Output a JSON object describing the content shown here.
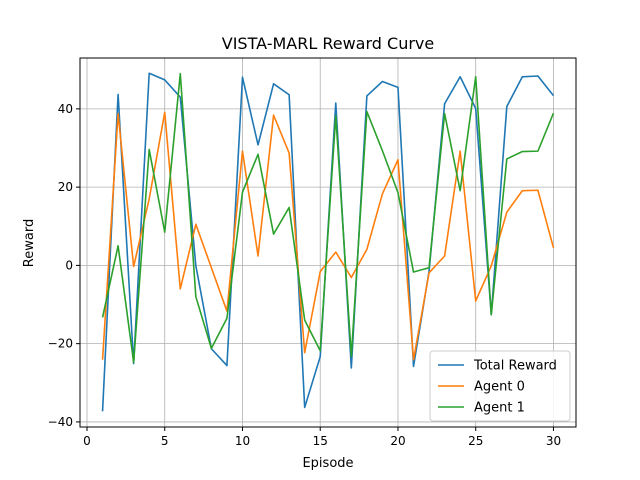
{
  "chart_data": {
    "type": "line",
    "title": "VISTA-MARL Reward Curve",
    "xlabel": "Episode",
    "ylabel": "Reward",
    "xlim": [
      -0.45,
      31.45
    ],
    "ylim": [
      -41.3,
      53.0
    ],
    "xticks": [
      0,
      5,
      10,
      15,
      20,
      25,
      30
    ],
    "yticks": [
      -40,
      -20,
      0,
      20,
      40
    ],
    "grid": true,
    "legend_position": "bottom-right",
    "x": [
      1,
      2,
      3,
      4,
      5,
      6,
      7,
      8,
      9,
      10,
      11,
      12,
      13,
      14,
      15,
      16,
      17,
      18,
      19,
      20,
      21,
      22,
      23,
      24,
      25,
      26,
      27,
      28,
      29,
      30
    ],
    "series": [
      {
        "name": "Total Reward",
        "color": "#1f77b4",
        "values": [
          -37.3,
          43.7,
          -25.1,
          49.1,
          47.4,
          43.0,
          -0.1,
          -21.3,
          -25.6,
          48.1,
          30.8,
          46.4,
          43.6,
          -36.3,
          -23.3,
          41.5,
          -26.2,
          43.3,
          47.0,
          45.5,
          -25.8,
          -1.5,
          41.3,
          48.2,
          40.1,
          -12.6,
          40.6,
          48.2,
          48.4,
          43.4
        ]
      },
      {
        "name": "Agent 0",
        "color": "#ff7f0e",
        "values": [
          -24.1,
          38.8,
          -0.3,
          17.0,
          39.1,
          -6.0,
          10.5,
          -0.6,
          -11.7,
          29.2,
          2.4,
          38.4,
          28.7,
          -22.3,
          -1.6,
          3.4,
          -3.1,
          4.1,
          18.3,
          27.0,
          -24.1,
          -1.9,
          2.4,
          29.2,
          -9.1,
          -0.1,
          13.6,
          19.1,
          19.2,
          4.5
        ]
      },
      {
        "name": "Agent 1",
        "color": "#2ca02c",
        "values": [
          -13.3,
          5.0,
          -24.8,
          29.6,
          8.5,
          49.0,
          -8.0,
          -21.2,
          -13.5,
          18.7,
          28.4,
          8.0,
          14.8,
          -14.0,
          -21.8,
          38.2,
          -23.2,
          39.3,
          29.3,
          18.6,
          -1.7,
          -0.6,
          38.8,
          19.1,
          48.2,
          -12.6,
          27.2,
          29.1,
          29.2,
          38.9
        ]
      }
    ]
  }
}
